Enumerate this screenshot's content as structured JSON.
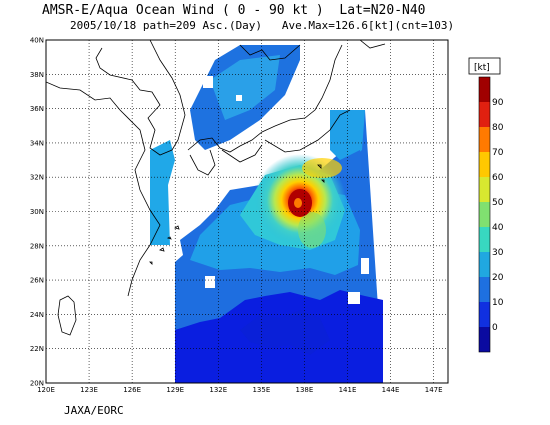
{
  "header": {
    "line1": "AMSR-E/Aqua Ocean Wind ( 0 - 90 kt )  Lat=N20-N40",
    "line2": "2005/10/18 path=209 Asc.(Day)   Ave.Max=126.6[kt](cnt=103)"
  },
  "credit": "JAXA/EORC",
  "map": {
    "lon_ticks": [
      "120E",
      "123E",
      "126E",
      "129E",
      "132E",
      "135E",
      "138E",
      "141E",
      "144E",
      "147E"
    ],
    "lat_ticks": [
      "20N",
      "22N",
      "24N",
      "26N",
      "28N",
      "30N",
      "32N",
      "34N",
      "36N",
      "38N",
      "40N"
    ],
    "lon_range": [
      120,
      148
    ],
    "lat_range": [
      20,
      40
    ],
    "grid": true
  },
  "colorbar": {
    "unit": "[kt]",
    "labels": [
      "90",
      "80",
      "70",
      "60",
      "50",
      "40",
      "30",
      "20",
      "10",
      "0"
    ],
    "colors": [
      "#a00000",
      "#e02010",
      "#ff7a00",
      "#ffc800",
      "#d8e830",
      "#80e070",
      "#38d8c0",
      "#20a8e0",
      "#1e70e0",
      "#1030e0",
      "#0a0aa0"
    ]
  },
  "palette": {
    "land": "#ffffff",
    "calm": "#0a1ee0",
    "light": "#2070e0",
    "moderate": "#20a0e8",
    "fresh": "#30c8d8",
    "strong": "#80e070",
    "gale": "#f0d020",
    "storm": "#ff7000",
    "core": "#c01010"
  }
}
